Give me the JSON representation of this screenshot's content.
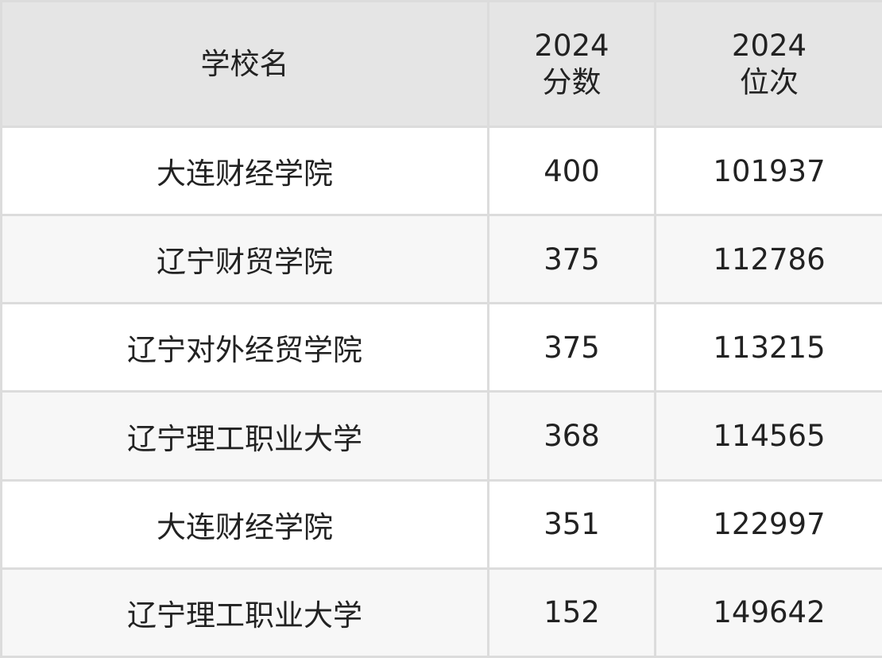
{
  "table": {
    "headers": [
      {
        "line1": "学校名",
        "line2": ""
      },
      {
        "line1": "2024",
        "line2": "分数"
      },
      {
        "line1": "2024",
        "line2": "位次"
      }
    ],
    "rows": [
      {
        "school": "大连财经学院",
        "score": "400",
        "rank": "101937"
      },
      {
        "school": "辽宁财贸学院",
        "score": "375",
        "rank": "112786"
      },
      {
        "school": "辽宁对外经贸学院",
        "score": "375",
        "rank": "113215"
      },
      {
        "school": "辽宁理工职业大学",
        "score": "368",
        "rank": "114565"
      },
      {
        "school": "大连财经学院",
        "score": "351",
        "rank": "122997"
      },
      {
        "school": "辽宁理工职业大学",
        "score": "152",
        "rank": "149642"
      }
    ]
  }
}
